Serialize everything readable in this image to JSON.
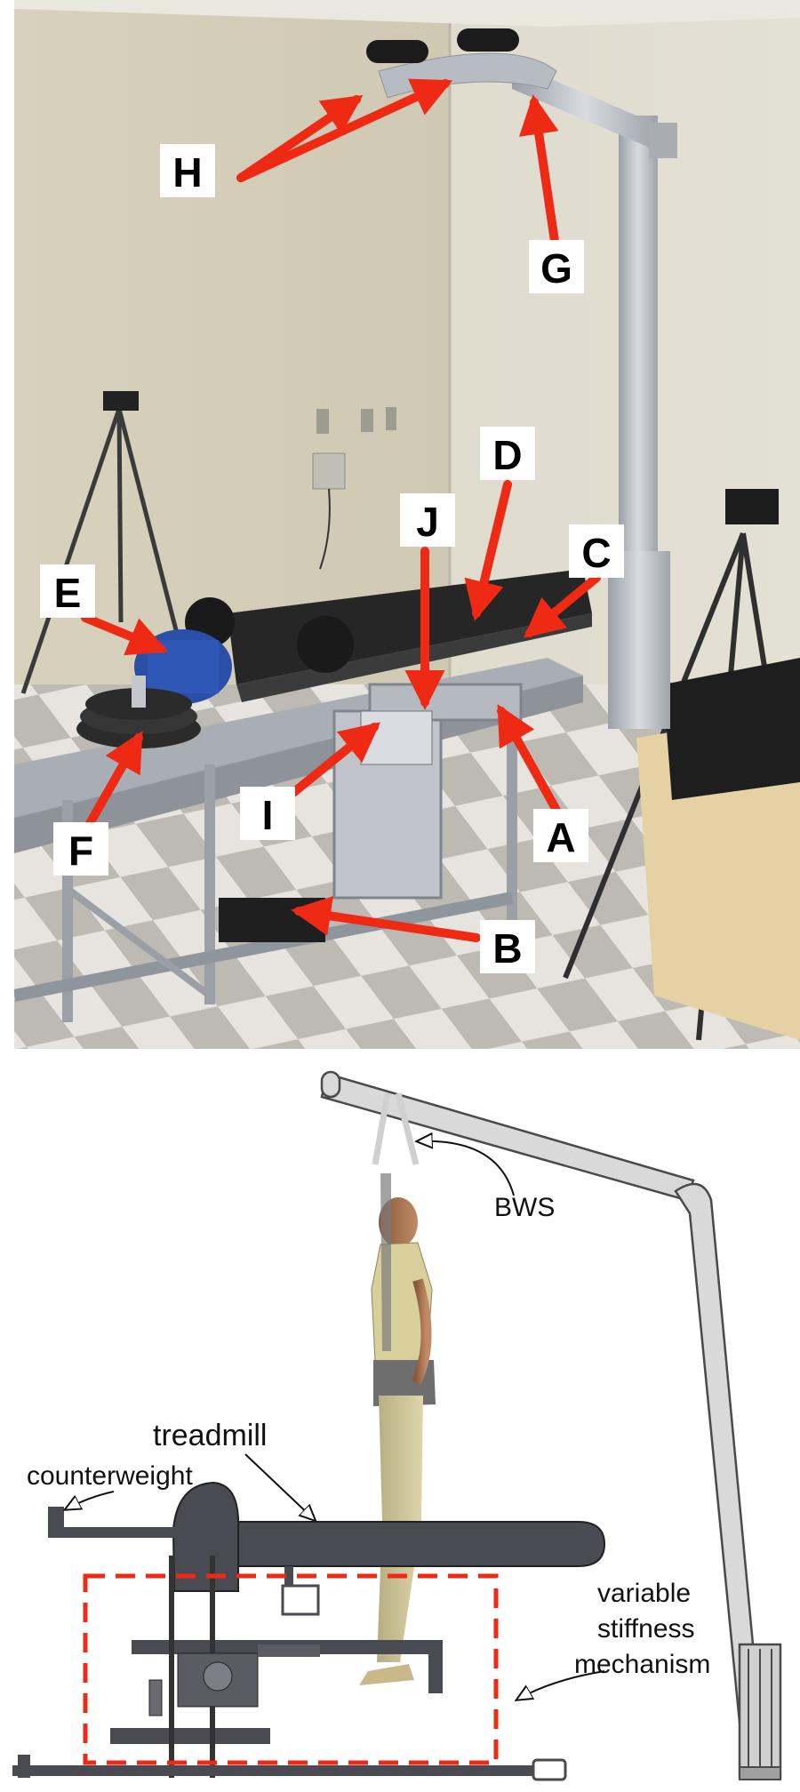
{
  "photo": {
    "labels": [
      {
        "id": "A",
        "text": "A"
      },
      {
        "id": "B",
        "text": "B"
      },
      {
        "id": "C",
        "text": "C"
      },
      {
        "id": "D",
        "text": "D"
      },
      {
        "id": "E",
        "text": "E"
      },
      {
        "id": "F",
        "text": "F"
      },
      {
        "id": "G",
        "text": "G"
      },
      {
        "id": "H",
        "text": "H"
      },
      {
        "id": "I",
        "text": "I"
      },
      {
        "id": "J",
        "text": "J"
      }
    ],
    "arrow_color": "#ee2a14",
    "wall_color": "#d9d4c3",
    "floor_light": "#e6e3de",
    "floor_dark": "#bfbcb7"
  },
  "diagram": {
    "bws_label": "BWS",
    "treadmill_label": "treadmill",
    "counterweight_label": "counterweight",
    "mechanism_label_line1": "variable",
    "mechanism_label_line2": "stiffness",
    "mechanism_label_line3": "mechanism",
    "dashed_box_color": "#ee2a14",
    "structure_color": "#4a4a52"
  }
}
